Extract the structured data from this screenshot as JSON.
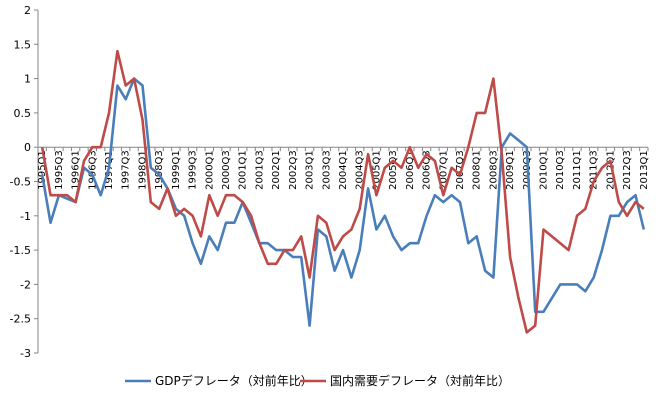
{
  "chart_data": {
    "type": "line",
    "title": "",
    "xlabel": "",
    "ylabel": "",
    "ylim": [
      -3,
      2
    ],
    "yticks": [
      2,
      1.5,
      1,
      0.5,
      0,
      -0.5,
      -1,
      -1.5,
      -2,
      -2.5,
      -3
    ],
    "grid": false,
    "legend_position": "bottom",
    "categories": [
      "1995Q1",
      "1995Q2",
      "1995Q3",
      "1995Q4",
      "1996Q1",
      "1996Q2",
      "1996Q3",
      "1996Q4",
      "1997Q1",
      "1997Q2",
      "1997Q3",
      "1997Q4",
      "1998Q1",
      "1998Q2",
      "1998Q3",
      "1998Q4",
      "1999Q1",
      "1999Q2",
      "1999Q3",
      "1999Q4",
      "2000Q1",
      "2000Q2",
      "2000Q3",
      "2000Q4",
      "2001Q1",
      "2001Q2",
      "2001Q3",
      "2001Q4",
      "2002Q1",
      "2002Q2",
      "2002Q3",
      "2002Q4",
      "2003Q1",
      "2003Q2",
      "2003Q3",
      "2003Q4",
      "2004Q1",
      "2004Q2",
      "2004Q3",
      "2004Q4",
      "2005Q1",
      "2005Q2",
      "2005Q3",
      "2005Q4",
      "2006Q1",
      "2006Q2",
      "2006Q3",
      "2006Q4",
      "2007Q1",
      "2007Q2",
      "2007Q3",
      "2007Q4",
      "2008Q1",
      "2008Q2",
      "2008Q3",
      "2008Q4",
      "2009Q1",
      "2009Q2",
      "2009Q3",
      "2009Q4",
      "2010Q1",
      "2010Q2",
      "2010Q3",
      "2010Q4",
      "2011Q1",
      "2011Q2",
      "2011Q3",
      "2011Q4",
      "2012Q1",
      "2012Q2",
      "2012Q3",
      "2012Q4",
      "2013Q1"
    ],
    "tick_labels": [
      "1995Q1",
      "",
      "1995Q3",
      "",
      "1996Q1",
      "",
      "1996Q3",
      "",
      "1997Q1",
      "",
      "1997Q3",
      "",
      "1998Q1",
      "",
      "1998Q3",
      "",
      "1999Q1",
      "",
      "1999Q3",
      "",
      "2000Q1",
      "",
      "2000Q3",
      "",
      "2001Q1",
      "",
      "2001Q3",
      "",
      "2002Q1",
      "",
      "2002Q3",
      "",
      "2003Q1",
      "",
      "2003Q3",
      "",
      "2004Q1",
      "",
      "2004Q3",
      "",
      "2005Q1",
      "",
      "2005Q3",
      "",
      "2006Q1",
      "",
      "2006Q3",
      "",
      "2007Q1",
      "",
      "2007Q3",
      "",
      "2008Q1",
      "",
      "2008Q3",
      "",
      "2009Q1",
      "",
      "2009Q3",
      "",
      "2010Q1",
      "",
      "2010Q3",
      "",
      "2011Q1",
      "",
      "2011Q3",
      "",
      "2012Q1",
      "",
      "2012Q3",
      "",
      "2013Q1"
    ],
    "series": [
      {
        "name": "GDPデフレータ（対前年比）",
        "color": "#4a7ebb",
        "values": [
          -0.4,
          -1.1,
          -0.7,
          -0.75,
          -0.8,
          -0.3,
          -0.4,
          -0.7,
          -0.3,
          0.9,
          0.7,
          1.0,
          0.9,
          -0.3,
          -0.4,
          -0.6,
          -0.9,
          -1.0,
          -1.4,
          -1.7,
          -1.3,
          -1.5,
          -1.1,
          -1.1,
          -0.8,
          -1.1,
          -1.4,
          -1.4,
          -1.5,
          -1.5,
          -1.6,
          -1.6,
          -2.6,
          -1.2,
          -1.3,
          -1.8,
          -1.5,
          -1.9,
          -1.5,
          -0.6,
          -1.2,
          -1.0,
          -1.3,
          -1.5,
          -1.4,
          -1.4,
          -1.0,
          -0.7,
          -0.8,
          -0.7,
          -0.8,
          -1.4,
          -1.3,
          -1.8,
          -1.9,
          0.0,
          0.2,
          0.1,
          0.0,
          -2.4,
          -2.4,
          -2.2,
          -2.0,
          -2.0,
          -2.0,
          -2.1,
          -1.9,
          -1.5,
          -1.0,
          -1.0,
          -0.8,
          -0.7,
          -1.2
        ]
      },
      {
        "name": "国内需要デフレータ（対前年比）",
        "color": "#be4b48",
        "values": [
          0.0,
          -0.7,
          -0.7,
          -0.7,
          -0.8,
          -0.2,
          0.0,
          0.0,
          0.5,
          1.4,
          0.9,
          1.0,
          0.4,
          -0.8,
          -0.9,
          -0.6,
          -1.0,
          -0.9,
          -1.0,
          -1.3,
          -0.7,
          -1.0,
          -0.7,
          -0.7,
          -0.8,
          -1.0,
          -1.4,
          -1.7,
          -1.7,
          -1.5,
          -1.5,
          -1.3,
          -1.9,
          -1.0,
          -1.1,
          -1.5,
          -1.3,
          -1.2,
          -0.9,
          -0.1,
          -0.7,
          -0.3,
          -0.2,
          -0.3,
          0.0,
          -0.3,
          -0.1,
          -0.2,
          -0.7,
          -0.3,
          -0.4,
          0.0,
          0.5,
          0.5,
          1.0,
          -0.1,
          -1.6,
          -2.2,
          -2.7,
          -2.6,
          -1.2,
          -1.3,
          -1.4,
          -1.5,
          -1.0,
          -0.9,
          -0.5,
          -0.3,
          -0.2,
          -0.8,
          -1.0,
          -0.8,
          -0.9
        ]
      }
    ]
  }
}
